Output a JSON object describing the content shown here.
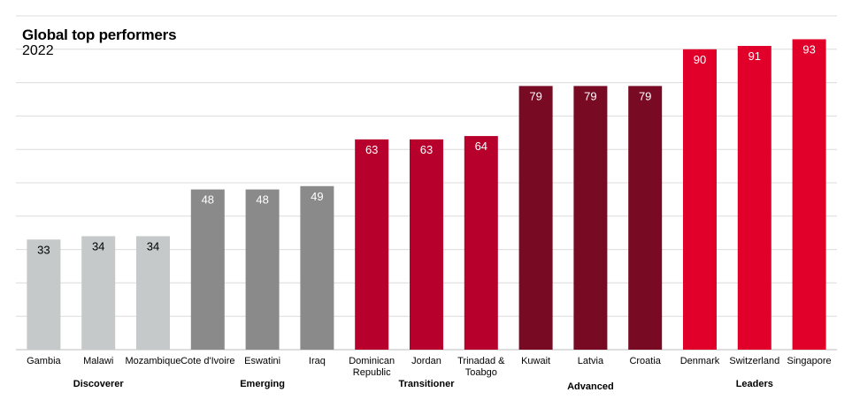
{
  "chart_data": {
    "type": "bar",
    "title": "Global top performers",
    "subtitle": "2022",
    "xlabel": "",
    "ylabel": "",
    "ylim": [
      0,
      100
    ],
    "grid": true,
    "legend": "none",
    "categories": [
      [
        "Gambia"
      ],
      [
        "Malawi"
      ],
      [
        "Mozambique"
      ],
      [
        "Cote d'Ivoire"
      ],
      [
        "Eswatini"
      ],
      [
        "Iraq"
      ],
      [
        "Dominican",
        "Republic"
      ],
      [
        "Jordan"
      ],
      [
        "Trinadad &",
        "Toabgo"
      ],
      [
        "Kuwait"
      ],
      [
        "Latvia"
      ],
      [
        "Croatia"
      ],
      [
        "Denmark"
      ],
      [
        "Switzerland"
      ],
      [
        "Singapore"
      ]
    ],
    "values": [
      33,
      34,
      34,
      48,
      48,
      49,
      63,
      63,
      64,
      79,
      79,
      79,
      90,
      91,
      93
    ],
    "groups": [
      {
        "label": "Discoverer",
        "start": 0,
        "end": 2,
        "color": "#c5c9c9",
        "label_color": "#000000"
      },
      {
        "label": "Emerging",
        "start": 3,
        "end": 5,
        "color": "#8a8a8a",
        "label_color": "#ffffff"
      },
      {
        "label": "Transitioner",
        "start": 6,
        "end": 8,
        "color": "#b8002c",
        "label_color": "#ffffff"
      },
      {
        "label": "Advanced",
        "start": 9,
        "end": 11,
        "color": "#780b23",
        "label_color": "#ffffff"
      },
      {
        "label": "Leaders",
        "start": 12,
        "end": 14,
        "color": "#e0002a",
        "label_color": "#ffffff"
      }
    ]
  }
}
